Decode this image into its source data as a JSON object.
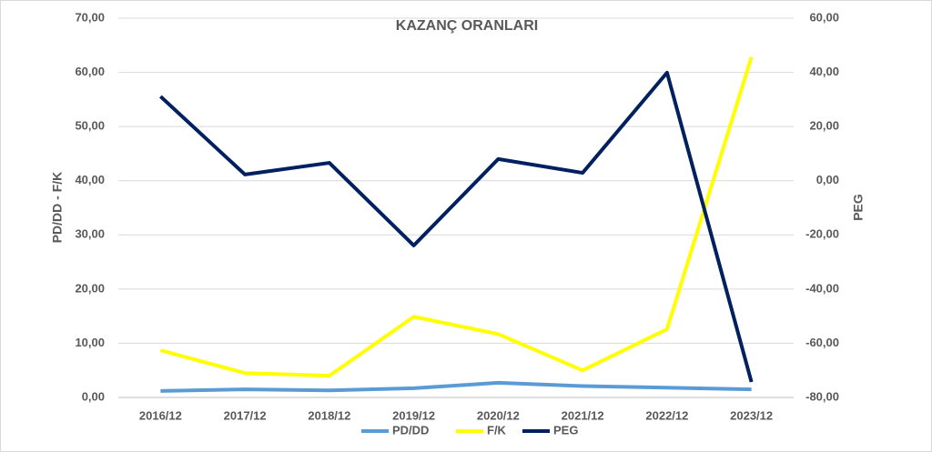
{
  "chart_data": {
    "type": "line",
    "title": "KAZANÇ ORANLARI",
    "y_label": "PD/DD - F/K",
    "y2_label": "PEG",
    "categories": [
      "2016/12",
      "2017/12",
      "2018/12",
      "2019/12",
      "2020/12",
      "2021/12",
      "2022/12",
      "2023/12"
    ],
    "series": [
      {
        "name": "PD/DD",
        "color": "#5b9bd5",
        "values": [
          1.2,
          1.5,
          1.3,
          1.7,
          2.7,
          2.1,
          1.8,
          1.5
        ]
      },
      {
        "name": "F/K",
        "color": "#ffff00",
        "values": [
          8.7,
          4.5,
          4.0,
          14.9,
          11.7,
          5.0,
          12.6,
          62.8
        ]
      },
      {
        "name": "PEG",
        "color": "#002060",
        "axis": "y2",
        "values": [
          31.1,
          2.3,
          6.6,
          -23.9,
          8.0,
          2.9,
          39.9,
          -74.3
        ]
      }
    ],
    "ylim": [
      0,
      70
    ],
    "yticks": [
      {
        "value": 0,
        "label": "0,00"
      },
      {
        "value": 10,
        "label": "10,00"
      },
      {
        "value": 20,
        "label": "20,00"
      },
      {
        "value": 30,
        "label": "30,00"
      },
      {
        "value": 40,
        "label": "40,00"
      },
      {
        "value": 50,
        "label": "50,00"
      },
      {
        "value": 60,
        "label": "60,00"
      },
      {
        "value": 70,
        "label": "70,00"
      }
    ],
    "y2lim": [
      -80,
      60
    ],
    "y2ticks": [
      {
        "value": -80,
        "label": "-80,00"
      },
      {
        "value": -60,
        "label": "-60,00"
      },
      {
        "value": -40,
        "label": "-40,00"
      },
      {
        "value": -20,
        "label": "-20,00"
      },
      {
        "value": 0,
        "label": "0,00"
      },
      {
        "value": 20,
        "label": "20,00"
      },
      {
        "value": 40,
        "label": "40,00"
      },
      {
        "value": 60,
        "label": "60,00"
      }
    ],
    "grid": true,
    "legend": "bottom"
  }
}
